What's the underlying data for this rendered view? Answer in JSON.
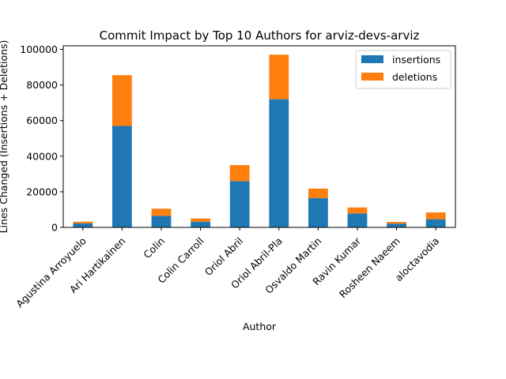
{
  "chart_data": {
    "type": "bar",
    "stacked": true,
    "title": "Commit Impact by Top 10 Authors for arviz-devs-arviz",
    "xlabel": "Author",
    "ylabel": "Lines Changed (Insertions + Deletions)",
    "categories": [
      "Agustina Arroyuelo",
      "Ari Hartikainen",
      "Colin",
      "Colin Carroll",
      "Oriol Abril",
      "Oriol Abril-Pla",
      "Osvaldo Martin",
      "Ravin Kumar",
      "Rosheen Naeem",
      "aloctavodia"
    ],
    "series": [
      {
        "name": "insertions",
        "color": "#1f77b4",
        "values": [
          2200,
          57000,
          6500,
          3200,
          26000,
          72000,
          16500,
          7800,
          2100,
          4600
        ]
      },
      {
        "name": "deletions",
        "color": "#ff7f0e",
        "values": [
          1000,
          28500,
          4000,
          1800,
          9000,
          25000,
          5300,
          3400,
          1000,
          3800
        ]
      }
    ],
    "ylim": [
      0,
      102000
    ],
    "yticks": [
      0,
      20000,
      40000,
      60000,
      80000,
      100000
    ],
    "ytick_labels": [
      "0",
      "20000",
      "40000",
      "60000",
      "80000",
      "100000"
    ],
    "legend_position": "top-right",
    "grid": false
  }
}
